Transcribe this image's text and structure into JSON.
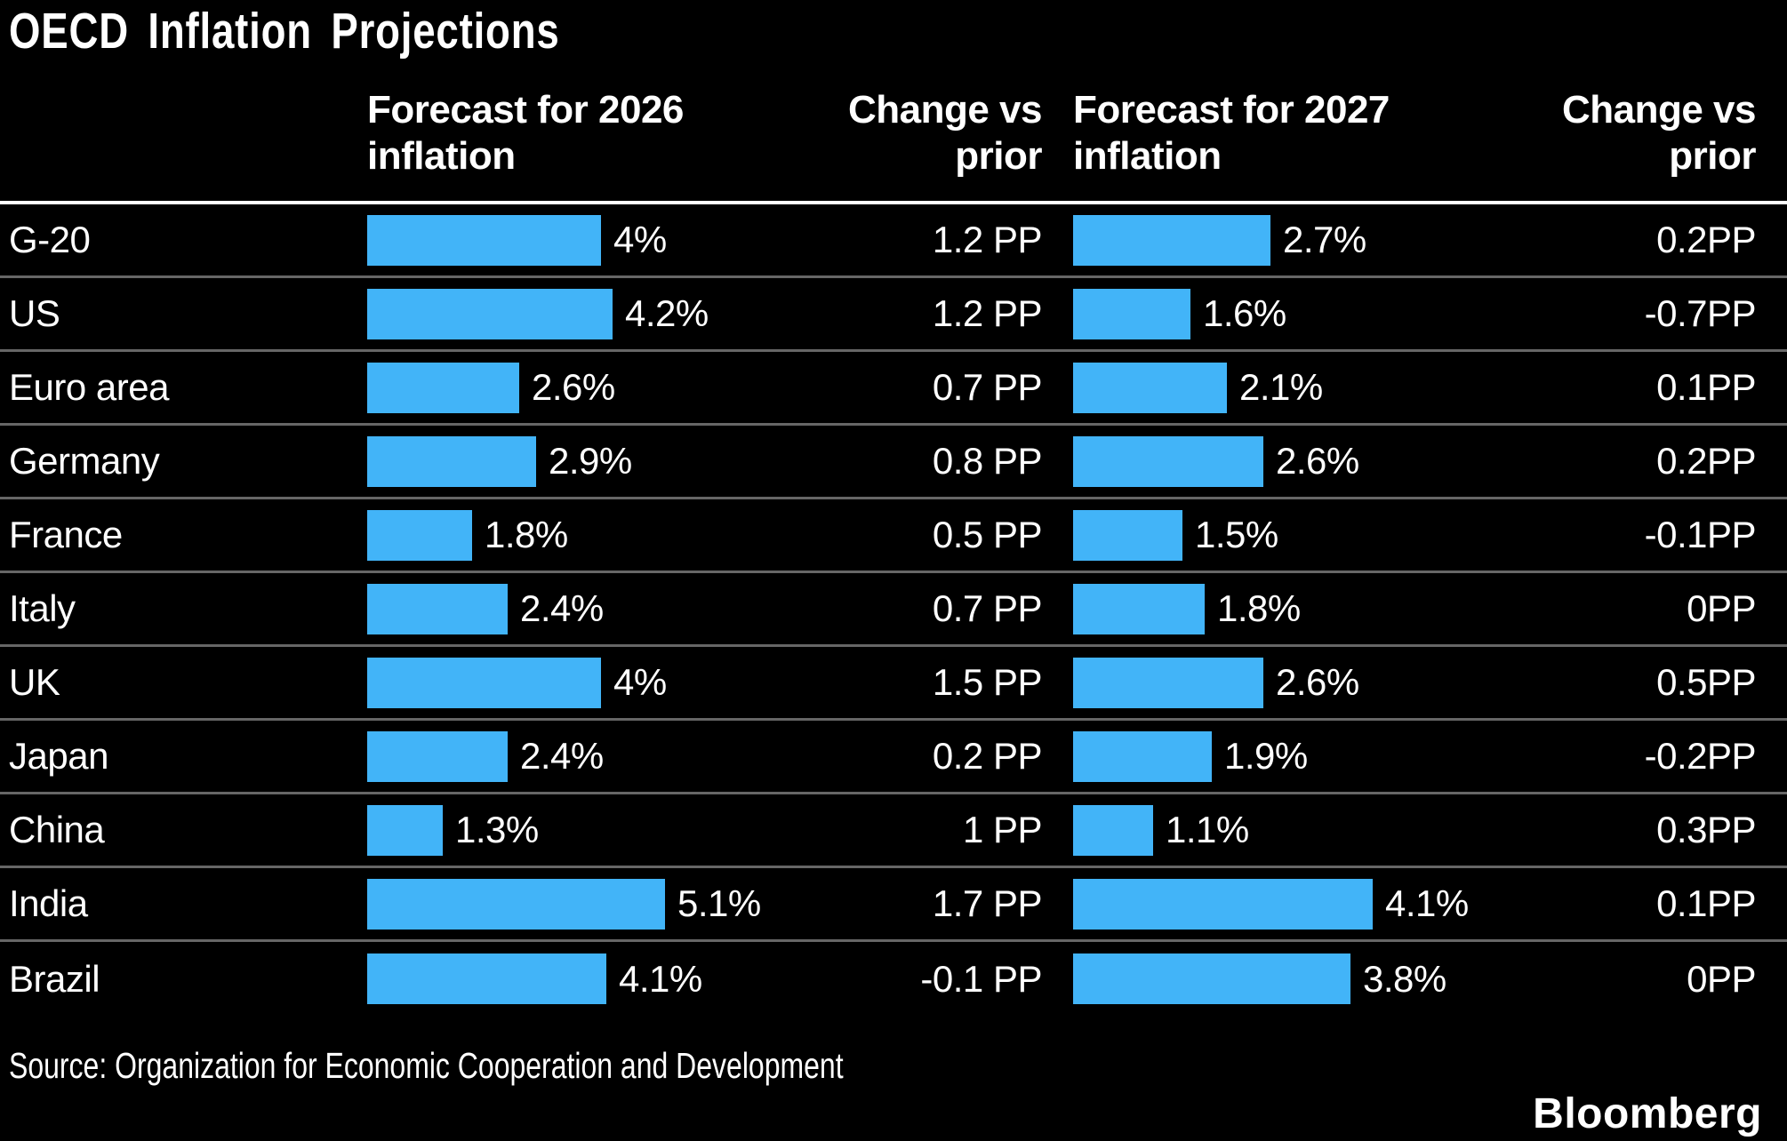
{
  "title": "OECD Inflation Projections",
  "header": {
    "forecast_2026": "Forecast for 2026\ninflation",
    "change_2026": "Change vs\nprior",
    "forecast_2027": "Forecast for 2027\ninflation",
    "change_2027": "Change vs\nprior"
  },
  "source": "Source: Organization for Economic Cooperation and Development",
  "brand": "Bloomberg",
  "colors": {
    "background": "#000000",
    "bar": "#42b4f8",
    "row_divider": "#666666",
    "header_rule": "#ffffff",
    "text": "#ffffff"
  },
  "rows": [
    {
      "label": "G-20",
      "f2026": 4.0,
      "f2026_label": "4%",
      "chg2026": "1.2 PP",
      "f2027": 2.7,
      "f2027_label": "2.7%",
      "chg2027": "0.2PP"
    },
    {
      "label": "US",
      "f2026": 4.2,
      "f2026_label": "4.2%",
      "chg2026": "1.2 PP",
      "f2027": 1.6,
      "f2027_label": "1.6%",
      "chg2027": "-0.7PP"
    },
    {
      "label": "Euro area",
      "f2026": 2.6,
      "f2026_label": "2.6%",
      "chg2026": "0.7 PP",
      "f2027": 2.1,
      "f2027_label": "2.1%",
      "chg2027": "0.1PP"
    },
    {
      "label": "Germany",
      "f2026": 2.9,
      "f2026_label": "2.9%",
      "chg2026": "0.8 PP",
      "f2027": 2.6,
      "f2027_label": "2.6%",
      "chg2027": "0.2PP"
    },
    {
      "label": "France",
      "f2026": 1.8,
      "f2026_label": "1.8%",
      "chg2026": "0.5 PP",
      "f2027": 1.5,
      "f2027_label": "1.5%",
      "chg2027": "-0.1PP"
    },
    {
      "label": "Italy",
      "f2026": 2.4,
      "f2026_label": "2.4%",
      "chg2026": "0.7 PP",
      "f2027": 1.8,
      "f2027_label": "1.8%",
      "chg2027": "0PP"
    },
    {
      "label": "UK",
      "f2026": 4.0,
      "f2026_label": "4%",
      "chg2026": "1.5 PP",
      "f2027": 2.6,
      "f2027_label": "2.6%",
      "chg2027": "0.5PP"
    },
    {
      "label": "Japan",
      "f2026": 2.4,
      "f2026_label": "2.4%",
      "chg2026": "0.2 PP",
      "f2027": 1.9,
      "f2027_label": "1.9%",
      "chg2027": "-0.2PP"
    },
    {
      "label": "China",
      "f2026": 1.3,
      "f2026_label": "1.3%",
      "chg2026": "1 PP",
      "f2027": 1.1,
      "f2027_label": "1.1%",
      "chg2027": "0.3PP"
    },
    {
      "label": "India",
      "f2026": 5.1,
      "f2026_label": "5.1%",
      "chg2026": "1.7 PP",
      "f2027": 4.1,
      "f2027_label": "4.1%",
      "chg2027": "0.1PP"
    },
    {
      "label": "Brazil",
      "f2026": 4.1,
      "f2026_label": "4.1%",
      "chg2026": "-0.1 PP",
      "f2027": 3.8,
      "f2027_label": "3.8%",
      "chg2027": "0PP"
    }
  ],
  "chart_data": {
    "type": "bar",
    "orientation": "horizontal",
    "title": "OECD Inflation Projections",
    "categories": [
      "G-20",
      "US",
      "Euro area",
      "Germany",
      "France",
      "Italy",
      "UK",
      "Japan",
      "China",
      "India",
      "Brazil"
    ],
    "series": [
      {
        "name": "Forecast for 2026 inflation",
        "unit": "%",
        "values": [
          4.0,
          4.2,
          2.6,
          2.9,
          1.8,
          2.4,
          4.0,
          2.4,
          1.3,
          5.1,
          4.1
        ]
      },
      {
        "name": "Change vs prior (2026)",
        "unit": "PP",
        "values": [
          1.2,
          1.2,
          0.7,
          0.8,
          0.5,
          0.7,
          1.5,
          0.2,
          1.0,
          1.7,
          -0.1
        ]
      },
      {
        "name": "Forecast for 2027 inflation",
        "unit": "%",
        "values": [
          2.7,
          1.6,
          2.1,
          2.6,
          1.5,
          1.8,
          2.6,
          1.9,
          1.1,
          4.1,
          3.8
        ]
      },
      {
        "name": "Change vs prior (2027)",
        "unit": "PP",
        "values": [
          0.2,
          -0.7,
          0.1,
          0.2,
          -0.1,
          0.0,
          0.5,
          -0.2,
          0.3,
          0.1,
          0.0
        ]
      }
    ],
    "bar_color": "#42b4f8",
    "legend_position": "none",
    "grid": false,
    "note": "Bars scaled per column: each forecast column's max value spans the full bar area"
  }
}
